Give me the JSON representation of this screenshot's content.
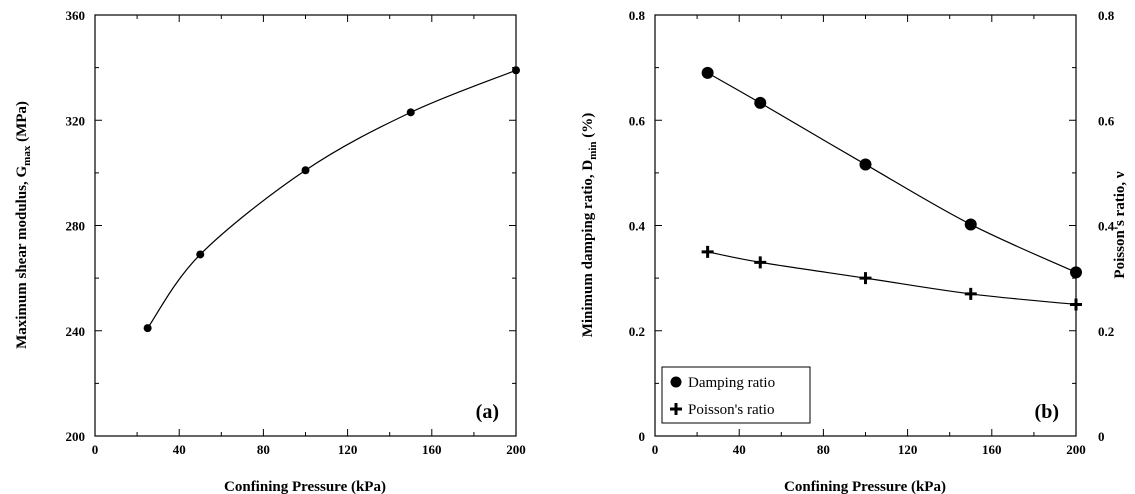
{
  "chart_data": [
    {
      "type": "line",
      "panel_label": "(a)",
      "xlabel": "Confining Pressure (kPa)",
      "ylabel": {
        "main": "Maximum shear modulus, G",
        "sub": "max",
        "unit": " (MPa)"
      },
      "xlim": [
        0,
        200
      ],
      "ylim": [
        200,
        360
      ],
      "xticks": [
        0,
        40,
        80,
        120,
        160,
        200
      ],
      "yticks": [
        200,
        240,
        280,
        320,
        360
      ],
      "grid": false,
      "series": [
        {
          "marker": "circle-small",
          "x": [
            25,
            50,
            100,
            150,
            200
          ],
          "y": [
            241,
            269,
            301,
            323,
            339
          ]
        }
      ]
    },
    {
      "type": "line",
      "panel_label": "(b)",
      "xlabel": "Confining Pressure (kPa)",
      "ylabel_left": {
        "main": "Minimum damping ratio, D",
        "sub": "min",
        "unit": " (%)"
      },
      "ylabel_right": "Poisson's ratio, ν",
      "xlim": [
        0,
        200
      ],
      "ylim_left": [
        0,
        0.8
      ],
      "ylim_right": [
        0,
        0.8
      ],
      "xticks": [
        0,
        40,
        80,
        120,
        160,
        200
      ],
      "yticks_left": [
        "0",
        "0.2",
        "0.4",
        "0.6",
        "0.8"
      ],
      "yticks_right": [
        "0",
        "0.2",
        "0.4",
        "0.6",
        "0.8"
      ],
      "grid": false,
      "legend_position": "bottom-left",
      "series": [
        {
          "name": "Damping ratio",
          "marker": "circle",
          "x": [
            25,
            50,
            100,
            150,
            200
          ],
          "y": [
            0.69,
            0.633,
            0.516,
            0.402,
            0.311
          ]
        },
        {
          "name": "Poisson's ratio",
          "marker": "plus",
          "x": [
            25,
            50,
            100,
            150,
            200
          ],
          "y": [
            0.35,
            0.33,
            0.3,
            0.27,
            0.25
          ]
        }
      ]
    }
  ]
}
